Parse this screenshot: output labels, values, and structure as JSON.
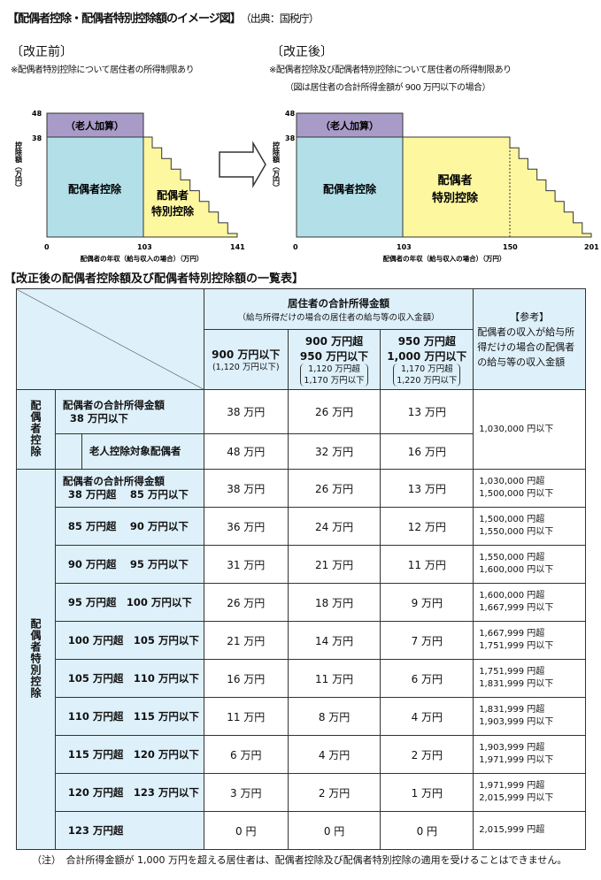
{
  "title": "【配偶者控除・配偶者特別控除額のイメージ図】",
  "source": "（出典：国税庁）",
  "before": {
    "heading": "〔改正前〕",
    "note": "※配偶者特別控除について居住者の所得制限あり",
    "y_ticks": [
      "48",
      "38"
    ],
    "y_label": "控除額（万円）",
    "x_ticks": [
      "0",
      "103",
      "141"
    ],
    "x_label": "配偶者の年収（給与収入の場合）（万円）",
    "elderly": "（老人加算）",
    "spouse": "配偶者控除",
    "special1": "配偶者",
    "special2": "特別控除"
  },
  "after": {
    "heading": "〔改正後〕",
    "note": "※配偶者控除及び配偶者特別控除について居住者の所得制限あり",
    "note2": "（図は居住者の合計所得金額が 900 万円以下の場合）",
    "y_ticks": [
      "48",
      "38"
    ],
    "y_label": "控除額（万円）",
    "x_ticks": [
      "0",
      "103",
      "150",
      "201"
    ],
    "x_label": "配偶者の年収（給与収入の場合）（万円）",
    "elderly": "（老人加算）",
    "spouse": "配偶者控除",
    "special1": "配偶者",
    "special2": "特別控除"
  },
  "colors": {
    "elderly": "#a99bc8",
    "spouse": "#b3e0e8",
    "special": "#fdf7a0",
    "header": "#def0fa"
  },
  "table": {
    "title": "【改正後の配偶者控除額及び配偶者特別控除額の一覧表】",
    "h_main": "居住者の合計所得金額",
    "h_sub": "（給与所得だけの場合の居住者の給与等の収入金額）",
    "cols": [
      {
        "a": "900 万円以下",
        "b": "(1,120 万円以下)"
      },
      {
        "a": "900 万円超",
        "a2": "950 万円以下",
        "b": "1,120 万円超",
        "b2": "1,170 万円以下"
      },
      {
        "a": "950 万円超",
        "a2": "1,000 万円以下",
        "b": "1,170 万円超",
        "b2": "1,220 万円以下"
      }
    ],
    "ref_head": "【参考】",
    "ref_text": "配偶者の収入が給与所得だけの場合の配偶者の給与等の収入金額",
    "group1": "配偶者控除",
    "g1_row1": "配偶者の合計所得金額",
    "g1_row1b": "38 万円以下",
    "g1_row2": "老人控除対象配偶者",
    "g1_vals": [
      [
        "38 万円",
        "26 万円",
        "13 万円"
      ],
      [
        "48 万円",
        "32 万円",
        "16 万円"
      ]
    ],
    "g1_ref": "1,030,000 円以下",
    "group2": "配偶者特別控除",
    "rows": [
      {
        "l1": "配偶者の合計所得金額",
        "l2": "38 万円超　 85 万円以下",
        "v": [
          "38 万円",
          "26 万円",
          "13 万円"
        ],
        "r1": "1,030,000 円超",
        "r2": "1,500,000 円以下"
      },
      {
        "l2": "85 万円超　 90 万円以下",
        "v": [
          "36 万円",
          "24 万円",
          "12 万円"
        ],
        "r1": "1,500,000 円超",
        "r2": "1,550,000 円以下"
      },
      {
        "l2": "90 万円超　 95 万円以下",
        "v": [
          "31 万円",
          "21 万円",
          "11 万円"
        ],
        "r1": "1,550,000 円超",
        "r2": "1,600,000 円以下"
      },
      {
        "l2": "95 万円超　100 万円以下",
        "v": [
          "26 万円",
          "18 万円",
          "9 万円"
        ],
        "r1": "1,600,000 円超",
        "r2": "1,667,999 円以下"
      },
      {
        "l2": "100 万円超　105 万円以下",
        "v": [
          "21 万円",
          "14 万円",
          "7 万円"
        ],
        "r1": "1,667,999 円超",
        "r2": "1,751,999 円以下"
      },
      {
        "l2": "105 万円超　110 万円以下",
        "v": [
          "16 万円",
          "11 万円",
          "6 万円"
        ],
        "r1": "1,751,999 円超",
        "r2": "1,831,999 円以下"
      },
      {
        "l2": "110 万円超　115 万円以下",
        "v": [
          "11 万円",
          "8 万円",
          "4 万円"
        ],
        "r1": "1,831,999 円超",
        "r2": "1,903,999 円以下"
      },
      {
        "l2": "115 万円超　120 万円以下",
        "v": [
          "6 万円",
          "4 万円",
          "2 万円"
        ],
        "r1": "1,903,999 円超",
        "r2": "1,971,999 円以下"
      },
      {
        "l2": "120 万円超　123 万円以下",
        "v": [
          "3 万円",
          "2 万円",
          "1 万円"
        ],
        "r1": "1,971,999 円超",
        "r2": "2,015,999 円以下"
      },
      {
        "l2": "123 万円超",
        "v": [
          "0 円",
          "0 円",
          "0 円"
        ],
        "r1": "2,015,999 円超"
      }
    ]
  },
  "footnote": "（注）　合計所得金額が 1,000 万円を超える居住者は、配偶者控除及び配偶者特別控除の適用を受けることはできません。"
}
